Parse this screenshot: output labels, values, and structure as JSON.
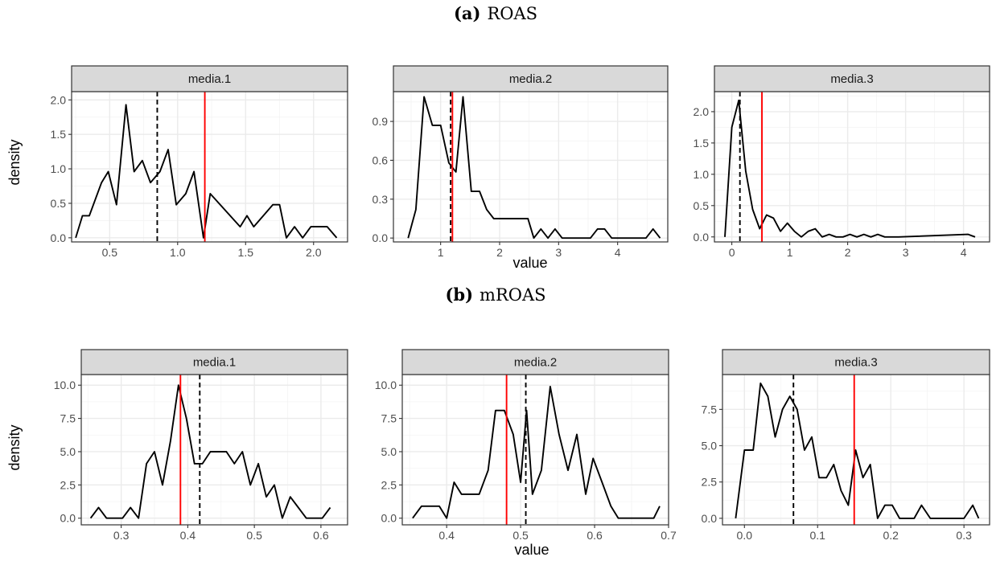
{
  "figure": {
    "rows": [
      {
        "caption_tag": "(a)",
        "caption_text": "ROAS",
        "ylabel": "density",
        "xlabel": "value"
      },
      {
        "caption_tag": "(b)",
        "caption_text": "mROAS",
        "ylabel": "density",
        "xlabel": "value"
      }
    ]
  },
  "chart_data": [
    {
      "type": "line",
      "panel": "media.1",
      "row": 0,
      "xlim": [
        0.22,
        2.25
      ],
      "ylim": [
        -0.06,
        2.12
      ],
      "xticks": [
        0.5,
        1.0,
        1.5,
        2.0
      ],
      "xtick_labels": [
        "0.5",
        "1.0",
        "1.5",
        "2.0"
      ],
      "yticks": [
        0.0,
        0.5,
        1.0,
        1.5,
        2.0
      ],
      "ytick_labels": [
        "0.0",
        "0.5",
        "1.0",
        "1.5",
        "2.0"
      ],
      "x": [
        0.25,
        0.3,
        0.35,
        0.44,
        0.49,
        0.55,
        0.62,
        0.68,
        0.74,
        0.8,
        0.87,
        0.93,
        0.99,
        1.06,
        1.12,
        1.19,
        1.24,
        1.46,
        1.51,
        1.56,
        1.7,
        1.75,
        1.8,
        1.86,
        1.92,
        1.98,
        2.1,
        2.17
      ],
      "values": [
        0.0,
        0.32,
        0.32,
        0.8,
        0.96,
        0.48,
        1.93,
        0.96,
        1.12,
        0.8,
        0.96,
        1.28,
        0.48,
        0.64,
        0.96,
        0.0,
        0.64,
        0.16,
        0.32,
        0.16,
        0.48,
        0.48,
        0.0,
        0.16,
        0.0,
        0.16,
        0.16,
        0.0
      ],
      "vlines": [
        {
          "x": 0.85,
          "style": "dashed",
          "color": "#000000"
        },
        {
          "x": 1.2,
          "style": "solid",
          "color": "#ff0000"
        }
      ]
    },
    {
      "type": "line",
      "panel": "media.2",
      "row": 0,
      "xlim": [
        0.2,
        4.85
      ],
      "ylim": [
        -0.03,
        1.13
      ],
      "xticks": [
        1,
        2,
        3,
        4
      ],
      "xtick_labels": [
        "1",
        "2",
        "3",
        "4"
      ],
      "yticks": [
        0.0,
        0.3,
        0.6,
        0.9
      ],
      "ytick_labels": [
        "0.0",
        "0.3",
        "0.6",
        "0.9"
      ],
      "x": [
        0.45,
        0.58,
        0.72,
        0.86,
        1.0,
        1.14,
        1.26,
        1.38,
        1.52,
        1.66,
        1.78,
        1.9,
        2.48,
        2.58,
        2.7,
        2.82,
        2.94,
        3.06,
        3.54,
        3.66,
        3.78,
        3.9,
        4.48,
        4.6,
        4.72
      ],
      "values": [
        0.0,
        0.22,
        1.09,
        0.87,
        0.87,
        0.58,
        0.51,
        1.09,
        0.36,
        0.36,
        0.22,
        0.15,
        0.15,
        0.0,
        0.07,
        0.0,
        0.07,
        0.0,
        0.0,
        0.07,
        0.07,
        0.0,
        0.0,
        0.07,
        0.0
      ],
      "vlines": [
        {
          "x": 1.17,
          "style": "dashed",
          "color": "#000000"
        },
        {
          "x": 1.2,
          "style": "solid",
          "color": "#ff0000"
        }
      ]
    },
    {
      "type": "line",
      "panel": "media.3",
      "row": 0,
      "xlim": [
        -0.3,
        4.45
      ],
      "ylim": [
        -0.08,
        2.32
      ],
      "xticks": [
        0,
        1,
        2,
        3,
        4
      ],
      "xtick_labels": [
        "0",
        "1",
        "2",
        "3",
        "4"
      ],
      "yticks": [
        0.0,
        0.5,
        1.0,
        1.5,
        2.0
      ],
      "ytick_labels": [
        "0.0",
        "0.5",
        "1.0",
        "1.5",
        "2.0"
      ],
      "x": [
        -0.12,
        0.0,
        0.12,
        0.24,
        0.36,
        0.48,
        0.6,
        0.72,
        0.84,
        0.96,
        1.08,
        1.2,
        1.32,
        1.44,
        1.56,
        1.68,
        1.8,
        1.92,
        2.04,
        2.16,
        2.28,
        2.4,
        2.52,
        2.64,
        2.76,
        2.88,
        4.08,
        4.2
      ],
      "values": [
        0.0,
        1.75,
        2.18,
        1.05,
        0.44,
        0.13,
        0.35,
        0.3,
        0.09,
        0.22,
        0.09,
        0.0,
        0.09,
        0.13,
        0.0,
        0.04,
        0.0,
        0.0,
        0.04,
        0.0,
        0.04,
        0.0,
        0.04,
        0.0,
        0.0,
        0.0,
        0.04,
        0.0
      ],
      "vlines": [
        {
          "x": 0.14,
          "style": "dashed",
          "color": "#000000"
        },
        {
          "x": 0.52,
          "style": "solid",
          "color": "#ff0000"
        }
      ]
    },
    {
      "type": "line",
      "panel": "media.1",
      "row": 1,
      "xlim": [
        0.24,
        0.64
      ],
      "ylim": [
        -0.5,
        10.8
      ],
      "xticks": [
        0.3,
        0.4,
        0.5,
        0.6
      ],
      "xtick_labels": [
        "0.3",
        "0.4",
        "0.5",
        "0.6"
      ],
      "yticks": [
        0.0,
        2.5,
        5.0,
        7.5,
        10.0
      ],
      "ytick_labels": [
        "0.0",
        "2.5",
        "5.0",
        "7.5",
        "10.0"
      ],
      "x": [
        0.254,
        0.266,
        0.278,
        0.29,
        0.302,
        0.314,
        0.326,
        0.338,
        0.35,
        0.362,
        0.374,
        0.386,
        0.398,
        0.41,
        0.422,
        0.434,
        0.446,
        0.458,
        0.47,
        0.482,
        0.494,
        0.506,
        0.518,
        0.53,
        0.542,
        0.554,
        0.566,
        0.578,
        0.59,
        0.602,
        0.614
      ],
      "values": [
        0.0,
        0.8,
        0.0,
        0.0,
        0.0,
        0.8,
        0.0,
        4.1,
        5.0,
        2.5,
        5.8,
        10.0,
        7.5,
        4.1,
        4.1,
        5.0,
        5.0,
        5.0,
        4.1,
        5.0,
        2.5,
        4.1,
        1.6,
        2.5,
        0.0,
        1.6,
        0.8,
        0.0,
        0.0,
        0.0,
        0.8
      ],
      "vlines": [
        {
          "x": 0.418,
          "style": "dashed",
          "color": "#000000"
        },
        {
          "x": 0.389,
          "style": "solid",
          "color": "#ff0000"
        }
      ]
    },
    {
      "type": "line",
      "panel": "media.2",
      "row": 1,
      "xlim": [
        0.34,
        0.7
      ],
      "ylim": [
        -0.5,
        10.8
      ],
      "xticks": [
        0.4,
        0.5,
        0.6,
        0.7
      ],
      "xtick_labels": [
        "0.4",
        "0.5",
        "0.6",
        "0.7"
      ],
      "yticks": [
        0.0,
        2.5,
        5.0,
        7.5,
        10.0
      ],
      "ytick_labels": [
        "0.0",
        "2.5",
        "5.0",
        "7.5",
        "10.0"
      ],
      "x": [
        0.354,
        0.366,
        0.378,
        0.39,
        0.4,
        0.41,
        0.42,
        0.432,
        0.444,
        0.456,
        0.466,
        0.478,
        0.49,
        0.5,
        0.508,
        0.516,
        0.528,
        0.54,
        0.552,
        0.564,
        0.576,
        0.588,
        0.598,
        0.61,
        0.622,
        0.632,
        0.644,
        0.656,
        0.668,
        0.68,
        0.688
      ],
      "values": [
        0.0,
        0.9,
        0.9,
        0.9,
        0.0,
        2.7,
        1.8,
        1.8,
        1.8,
        3.6,
        8.1,
        8.1,
        6.3,
        2.7,
        8.1,
        1.8,
        3.6,
        9.9,
        6.3,
        3.6,
        6.3,
        1.8,
        4.5,
        2.7,
        0.9,
        0.0,
        0.0,
        0.0,
        0.0,
        0.0,
        0.9
      ],
      "vlines": [
        {
          "x": 0.507,
          "style": "dashed",
          "color": "#000000"
        },
        {
          "x": 0.481,
          "style": "solid",
          "color": "#ff0000"
        }
      ]
    },
    {
      "type": "line",
      "panel": "media.3",
      "row": 1,
      "xlim": [
        -0.03,
        0.335
      ],
      "ylim": [
        -0.45,
        9.9
      ],
      "xticks": [
        0.0,
        0.1,
        0.2,
        0.3
      ],
      "xtick_labels": [
        "0.0",
        "0.1",
        "0.2",
        "0.3"
      ],
      "yticks": [
        0.0,
        2.5,
        5.0,
        7.5
      ],
      "ytick_labels": [
        "0.0",
        "2.5",
        "5.0",
        "7.5"
      ],
      "x": [
        -0.012,
        0.0,
        0.012,
        0.022,
        0.032,
        0.042,
        0.052,
        0.062,
        0.072,
        0.082,
        0.092,
        0.102,
        0.112,
        0.122,
        0.132,
        0.142,
        0.152,
        0.162,
        0.172,
        0.182,
        0.192,
        0.202,
        0.212,
        0.222,
        0.232,
        0.242,
        0.254,
        0.266,
        0.278,
        0.29,
        0.3,
        0.312,
        0.32
      ],
      "values": [
        0.0,
        4.7,
        4.7,
        9.3,
        8.4,
        5.6,
        7.5,
        8.4,
        7.5,
        4.7,
        5.6,
        2.8,
        2.8,
        3.7,
        1.9,
        0.9,
        4.7,
        2.8,
        3.7,
        0.0,
        0.9,
        0.9,
        0.0,
        0.0,
        0.0,
        0.9,
        0.0,
        0.0,
        0.0,
        0.0,
        0.0,
        0.9,
        0.0
      ],
      "vlines": [
        {
          "x": 0.067,
          "style": "dashed",
          "color": "#000000"
        },
        {
          "x": 0.15,
          "style": "solid",
          "color": "#ff0000"
        }
      ]
    }
  ]
}
